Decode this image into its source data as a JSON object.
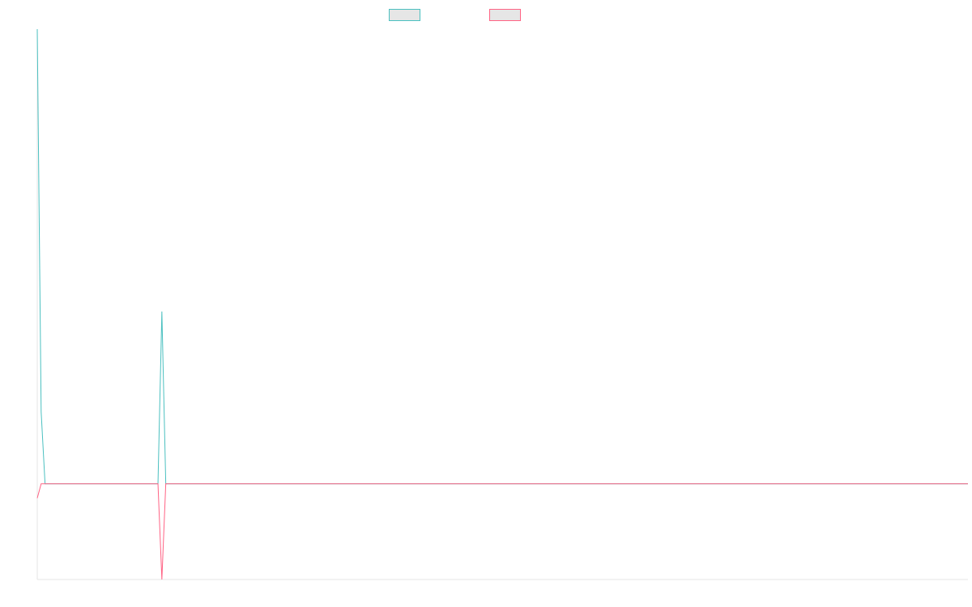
{
  "chart_data": {
    "type": "line",
    "title": "",
    "xlabel": "",
    "ylabel": "",
    "x": [
      0,
      1,
      2,
      3,
      4,
      5,
      6,
      7,
      8,
      9,
      10,
      11,
      12,
      13,
      14,
      15,
      16,
      17,
      18,
      19,
      20,
      21,
      22,
      23,
      24,
      25,
      26,
      27,
      28,
      29,
      30,
      31,
      32,
      33,
      34,
      35,
      36,
      37,
      38,
      39,
      40,
      41,
      42,
      43,
      44,
      45,
      46,
      47,
      48,
      49,
      50,
      51,
      52,
      53,
      54,
      55,
      56,
      57,
      58,
      59,
      60,
      61,
      62,
      63,
      64,
      65,
      66,
      67,
      68,
      69,
      70,
      71,
      72,
      73,
      74,
      75,
      76,
      77,
      78,
      79,
      80,
      81,
      82,
      83,
      84,
      85,
      86,
      87,
      88,
      89,
      90,
      91,
      92,
      93,
      94,
      95,
      96,
      97,
      98,
      99,
      100,
      101,
      102,
      103,
      104,
      105,
      106,
      107,
      108,
      109,
      110,
      111,
      112,
      113,
      114,
      115,
      116,
      117,
      118,
      119,
      120,
      121,
      122,
      123,
      124,
      125,
      126,
      127,
      128,
      129,
      130,
      131,
      132,
      133,
      134,
      135,
      136,
      137,
      138,
      139,
      140,
      141,
      142,
      143,
      144,
      145,
      146,
      147,
      148,
      149,
      150,
      151,
      152,
      153,
      154,
      155,
      156,
      157,
      158,
      159,
      160,
      161,
      162,
      163,
      164,
      165,
      166,
      167,
      168,
      169,
      170,
      171,
      172,
      173,
      174,
      175,
      176,
      177,
      178,
      179,
      180,
      181,
      182,
      183,
      184,
      185,
      186,
      187,
      188,
      189,
      190,
      191,
      192,
      193,
      194,
      195,
      196,
      197,
      198,
      199,
      200,
      201,
      202,
      203,
      204,
      205,
      206,
      207,
      208,
      209,
      210,
      211,
      212,
      213,
      214,
      215,
      216,
      217,
      218,
      219,
      220,
      221,
      222,
      223,
      224,
      225,
      226,
      227,
      228,
      229,
      230,
      231,
      232,
      233,
      234,
      235,
      236,
      237,
      238,
      239
    ],
    "ylim": [
      -20,
      95
    ],
    "legend_position": "top",
    "grid": false,
    "series": [
      {
        "name": "",
        "color": "#4bc0c0",
        "values": [
          95,
          15,
          0,
          0,
          0,
          0,
          0,
          0,
          0,
          0,
          0,
          0,
          0,
          0,
          0,
          0,
          0,
          0,
          0,
          0,
          0,
          0,
          0,
          0,
          0,
          0,
          0,
          0,
          0,
          0,
          0,
          0,
          36,
          0,
          0,
          0,
          0,
          0,
          0,
          0,
          0,
          0,
          0,
          0,
          0,
          0,
          0,
          0,
          0,
          0,
          0,
          0,
          0,
          0,
          0,
          0,
          0,
          0,
          0,
          0,
          0,
          0,
          0,
          0,
          0,
          0,
          0,
          0,
          0,
          0,
          0,
          0,
          0,
          0,
          0,
          0,
          0,
          0,
          0,
          0,
          0,
          0,
          0,
          0,
          0,
          0,
          0,
          0,
          0,
          0,
          0,
          0,
          0,
          0,
          0,
          0,
          0,
          0,
          0,
          0,
          0,
          0,
          0,
          0,
          0,
          0,
          0,
          0,
          0,
          0,
          0,
          0,
          0,
          0,
          0,
          0,
          0,
          0,
          0,
          0,
          0,
          0,
          0,
          0,
          0,
          0,
          0,
          0,
          0,
          0,
          0,
          0,
          0,
          0,
          0,
          0,
          0,
          0,
          0,
          0,
          0,
          0,
          0,
          0,
          0,
          0,
          0,
          0,
          0,
          0,
          0,
          0,
          0,
          0,
          0,
          0,
          0,
          0,
          0,
          0,
          0,
          0,
          0,
          0,
          0,
          0,
          0,
          0,
          0,
          0,
          0,
          0,
          0,
          0,
          0,
          0,
          0,
          0,
          0,
          0,
          0,
          0,
          0,
          0,
          0,
          0,
          0,
          0,
          0,
          0,
          0,
          0,
          0,
          0,
          0,
          0,
          0,
          0,
          0,
          0,
          0,
          0,
          0,
          0,
          0,
          0,
          0,
          0,
          0,
          0,
          0,
          0,
          0,
          0,
          0,
          0,
          0,
          0,
          0,
          0,
          0,
          0,
          0,
          0,
          0,
          0,
          0,
          0,
          0,
          0,
          0,
          0,
          0,
          0,
          0,
          0,
          0,
          0,
          0,
          0
        ]
      },
      {
        "name": "",
        "color": "#ff6384",
        "values": [
          -3,
          0,
          0,
          0,
          0,
          0,
          0,
          0,
          0,
          0,
          0,
          0,
          0,
          0,
          0,
          0,
          0,
          0,
          0,
          0,
          0,
          0,
          0,
          0,
          0,
          0,
          0,
          0,
          0,
          0,
          0,
          0,
          -20,
          0,
          0,
          0,
          0,
          0,
          0,
          0,
          0,
          0,
          0,
          0,
          0,
          0,
          0,
          0,
          0,
          0,
          0,
          0,
          0,
          0,
          0,
          0,
          0,
          0,
          0,
          0,
          0,
          0,
          0,
          0,
          0,
          0,
          0,
          0,
          0,
          0,
          0,
          0,
          0,
          0,
          0,
          0,
          0,
          0,
          0,
          0,
          0,
          0,
          0,
          0,
          0,
          0,
          0,
          0,
          0,
          0,
          0,
          0,
          0,
          0,
          0,
          0,
          0,
          0,
          0,
          0,
          0,
          0,
          0,
          0,
          0,
          0,
          0,
          0,
          0,
          0,
          0,
          0,
          0,
          0,
          0,
          0,
          0,
          0,
          0,
          0,
          0,
          0,
          0,
          0,
          0,
          0,
          0,
          0,
          0,
          0,
          0,
          0,
          0,
          0,
          0,
          0,
          0,
          0,
          0,
          0,
          0,
          0,
          0,
          0,
          0,
          0,
          0,
          0,
          0,
          0,
          0,
          0,
          0,
          0,
          0,
          0,
          0,
          0,
          0,
          0,
          0,
          0,
          0,
          0,
          0,
          0,
          0,
          0,
          0,
          0,
          0,
          0,
          0,
          0,
          0,
          0,
          0,
          0,
          0,
          0,
          0,
          0,
          0,
          0,
          0,
          0,
          0,
          0,
          0,
          0,
          0,
          0,
          0,
          0,
          0,
          0,
          0,
          0,
          0,
          0,
          0,
          0,
          0,
          0,
          0,
          0,
          0,
          0,
          0,
          0,
          0,
          0,
          0,
          0,
          0,
          0,
          0,
          0,
          0,
          0,
          0,
          0,
          0,
          0,
          0,
          0,
          0,
          0,
          0,
          0,
          0,
          0,
          0,
          0,
          0,
          0,
          0,
          0,
          0,
          0
        ]
      }
    ]
  }
}
